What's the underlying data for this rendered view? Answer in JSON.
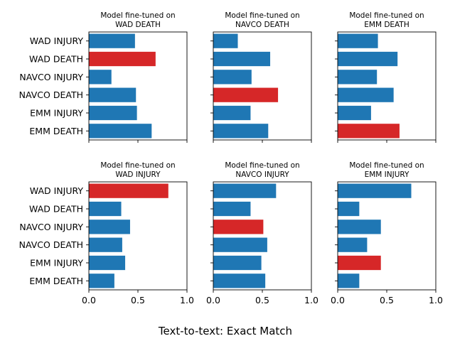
{
  "chart_data": {
    "type": "bar",
    "orientation": "horizontal",
    "xlabel": "Text-to-text: Exact Match",
    "xlim": [
      0.0,
      1.0
    ],
    "xticks": [
      "0.0",
      "0.5",
      "1.0"
    ],
    "categories": [
      "WAD INJURY",
      "WAD DEATH",
      "NAVCO INJURY",
      "NAVCO DEATH",
      "EMM INJURY",
      "EMM DEATH"
    ],
    "colors": {
      "default": "#1f77b4",
      "highlight": "#d62728"
    },
    "panels": [
      {
        "title_line1": "Model fine-tuned on",
        "title_line2": "WAD DEATH",
        "values": [
          0.47,
          0.68,
          0.23,
          0.48,
          0.49,
          0.64
        ],
        "highlight": "WAD DEATH"
      },
      {
        "title_line1": "Model fine-tuned on",
        "title_line2": "NAVCO DEATH",
        "values": [
          0.25,
          0.58,
          0.39,
          0.66,
          0.38,
          0.56
        ],
        "highlight": "NAVCO DEATH"
      },
      {
        "title_line1": "Model fine-tuned on",
        "title_line2": "EMM DEATH",
        "values": [
          0.41,
          0.61,
          0.4,
          0.57,
          0.34,
          0.63
        ],
        "highlight": "EMM DEATH"
      },
      {
        "title_line1": "Model fine-tuned on",
        "title_line2": "WAD INJURY",
        "values": [
          0.81,
          0.33,
          0.42,
          0.34,
          0.37,
          0.26
        ],
        "highlight": "WAD INJURY"
      },
      {
        "title_line1": "Model fine-tuned on",
        "title_line2": "NAVCO INJURY",
        "values": [
          0.64,
          0.38,
          0.51,
          0.55,
          0.49,
          0.53
        ],
        "highlight": "NAVCO INJURY"
      },
      {
        "title_line1": "Model fine-tuned on",
        "title_line2": "EMM INJURY",
        "values": [
          0.75,
          0.22,
          0.44,
          0.3,
          0.44,
          0.22
        ],
        "highlight": "EMM INJURY"
      }
    ]
  }
}
